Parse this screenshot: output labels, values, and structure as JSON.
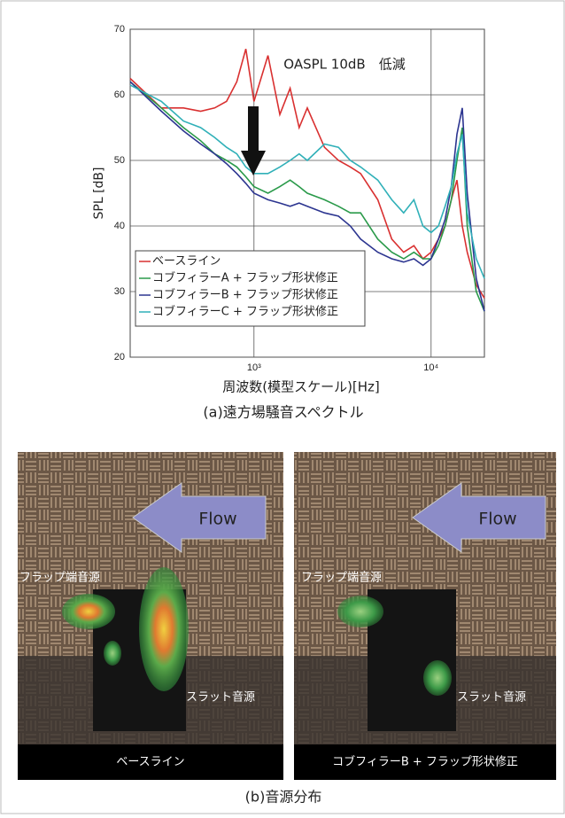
{
  "chart_data": {
    "type": "line",
    "annotation": "OASPL 10dB　低減",
    "ylabel": "SPL [dB]",
    "xlabel": "周波数(模型スケール)[Hz]",
    "caption": "(a)遠方場騒音スペクトル",
    "xscale": "log",
    "xlim": [
      200,
      20000
    ],
    "xticks": [
      {
        "value": 1000,
        "label": "10³"
      },
      {
        "value": 10000,
        "label": "10⁴"
      }
    ],
    "ylim": [
      20,
      70
    ],
    "yticks": [
      20,
      30,
      40,
      50,
      60,
      70
    ],
    "grid": true,
    "legend": "lower left",
    "x": [
      200,
      300,
      400,
      500,
      600,
      700,
      800,
      900,
      1000,
      1200,
      1400,
      1600,
      1800,
      2000,
      2500,
      3000,
      3500,
      4000,
      5000,
      6000,
      7000,
      8000,
      9000,
      10000,
      11000,
      12000,
      13000,
      14000,
      15000,
      16000,
      18000,
      20000
    ],
    "series": [
      {
        "name": "ベースライン",
        "color": "#d93030",
        "values": [
          62.5,
          58,
          58,
          57.5,
          58,
          59,
          62,
          67,
          59,
          66,
          57,
          61,
          55,
          58,
          52,
          50,
          49,
          48,
          44,
          38,
          36,
          37,
          35,
          36,
          38,
          40,
          44,
          47,
          40,
          36,
          31,
          29
        ]
      },
      {
        "name": "コブフィラーA + フラップ形状修正",
        "color": "#2a9a4a",
        "values": [
          62,
          58,
          55,
          53,
          51,
          50,
          49,
          47.5,
          46,
          45,
          46,
          47,
          46,
          45,
          44,
          43,
          42,
          42,
          38,
          36,
          35,
          36,
          35,
          35,
          37,
          40,
          44,
          50,
          55,
          40,
          30,
          27
        ]
      },
      {
        "name": "コブフィラーB + フラップ形状修正",
        "color": "#2c3590",
        "values": [
          62,
          57.5,
          54.5,
          52.5,
          51,
          49.5,
          48,
          46.5,
          45,
          44,
          43.5,
          43,
          43.5,
          43,
          42,
          41.5,
          40,
          38,
          36,
          35,
          34.5,
          35,
          34,
          35,
          38,
          41,
          46,
          54,
          58,
          45,
          32,
          27
        ]
      },
      {
        "name": "コブフィラーC + フラップ形状修正",
        "color": "#30b0b8",
        "values": [
          61.5,
          59,
          56,
          55,
          53.5,
          52,
          51,
          49,
          48,
          48,
          49,
          50,
          51,
          50,
          52.5,
          52,
          50,
          49,
          47,
          44,
          42,
          44,
          40,
          39,
          40,
          43,
          46,
          51,
          54,
          42,
          35,
          32
        ]
      }
    ]
  },
  "panel_b": {
    "caption": "(b)音源分布",
    "left": {
      "flow": "Flow",
      "flap_source": "フラップ端音源",
      "slat_source": "スラット音源",
      "label": "ベースライン"
    },
    "right": {
      "flow": "Flow",
      "flap_source": "フラップ端音源",
      "slat_source": "スラット音源",
      "label": "コブフィラーB + フラップ形状修正"
    }
  }
}
